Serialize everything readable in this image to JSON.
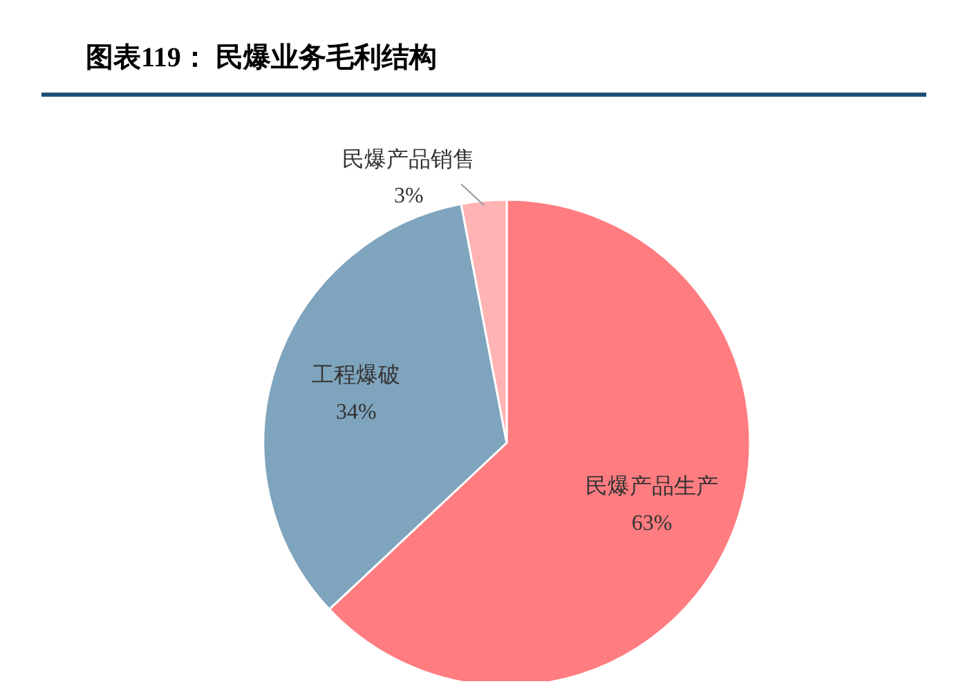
{
  "chart_data": {
    "type": "pie",
    "title": "图表119：  民爆业务毛利结构",
    "categories": [
      "民爆产品生产",
      "工程爆破",
      "民爆产品销售"
    ],
    "values": [
      63,
      34,
      3
    ],
    "colors": [
      "#ff7c80",
      "#7fa4bd",
      "#ffb3b3"
    ],
    "value_labels": [
      "63%",
      "34%",
      "3%"
    ]
  }
}
